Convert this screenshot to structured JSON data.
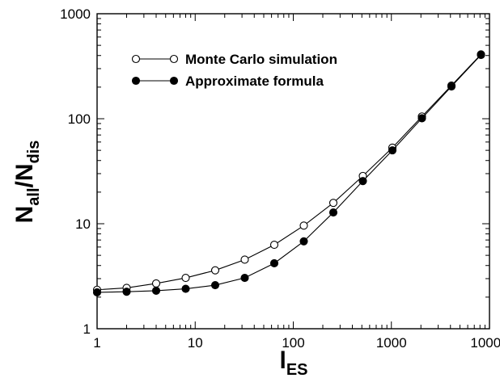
{
  "chart_data": {
    "type": "line",
    "x_scale": "log",
    "y_scale": "log",
    "xlim": [
      1,
      10000
    ],
    "ylim": [
      1,
      1000
    ],
    "x_ticks": [
      {
        "value": 1,
        "label": "1"
      },
      {
        "value": 10,
        "label": "10"
      },
      {
        "value": 100,
        "label": "100"
      },
      {
        "value": 1000,
        "label": "1000"
      },
      {
        "value": 10000,
        "label": "10000"
      }
    ],
    "y_ticks": [
      {
        "value": 1,
        "label": "1"
      },
      {
        "value": 10,
        "label": "10"
      },
      {
        "value": 100,
        "label": "100"
      },
      {
        "value": 1000,
        "label": "1000"
      }
    ],
    "xlabel": {
      "main": "l",
      "sub": "ES"
    },
    "ylabel": {
      "main1": "N",
      "sub1": "all",
      "sep": "/N",
      "sub2": "dis"
    },
    "grid": false,
    "legend_position": "top-left",
    "series": [
      {
        "name": "Monte Carlo simulation",
        "marker": "open-circle",
        "color": "#000000",
        "x": [
          1,
          2,
          4,
          8,
          16,
          32,
          64,
          128,
          256,
          512,
          1024,
          2048,
          4096,
          8192
        ],
        "y": [
          2.35,
          2.45,
          2.7,
          3.05,
          3.6,
          4.55,
          6.3,
          9.6,
          15.8,
          28.5,
          53,
          105,
          207,
          410
        ]
      },
      {
        "name": "Approximate formula",
        "marker": "filled-circle",
        "color": "#000000",
        "x": [
          1,
          2,
          4,
          8,
          16,
          32,
          64,
          128,
          256,
          512,
          1024,
          2048,
          4096,
          8192
        ],
        "y": [
          2.22,
          2.25,
          2.3,
          2.4,
          2.6,
          3.05,
          4.2,
          6.8,
          12.8,
          25.5,
          50,
          101,
          203,
          405
        ]
      }
    ]
  }
}
